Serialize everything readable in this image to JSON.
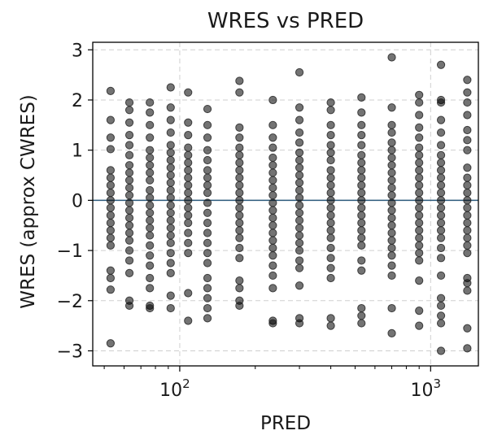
{
  "chart_data": {
    "type": "scatter",
    "title": "WRES vs PRED",
    "xlabel": "PRED",
    "ylabel": "WRES (approx CWRES)",
    "x_scale": "log",
    "xlim": [
      45,
      1550
    ],
    "ylim": [
      -3.3,
      3.15
    ],
    "x_ticks": [
      {
        "value": 100,
        "base": "10",
        "exp": "2"
      },
      {
        "value": 1000,
        "base": "10",
        "exp": "3"
      }
    ],
    "y_ticks": [
      3,
      2,
      1,
      0,
      -1,
      -2,
      -3
    ],
    "y_tick_labels": [
      "3",
      "2",
      "1",
      "0",
      "−1",
      "−2",
      "−3"
    ],
    "grid": true,
    "reference_line": {
      "y": 0,
      "color": "#2c5a7c"
    },
    "point_color": "#000000",
    "groups": [
      {
        "x": 53,
        "y": [
          2.18,
          1.6,
          1.25,
          1.02,
          0.6,
          0.45,
          0.3,
          0.15,
          0.0,
          -0.15,
          -0.3,
          -0.45,
          -0.6,
          -0.75,
          -0.9,
          -1.4,
          -1.55,
          -1.78,
          -2.85
        ]
      },
      {
        "x": 63,
        "y": [
          1.95,
          1.8,
          1.55,
          1.3,
          1.1,
          0.9,
          0.7,
          0.55,
          0.4,
          0.25,
          0.1,
          -0.05,
          -0.2,
          -0.35,
          -0.5,
          -0.65,
          -0.8,
          -1.0,
          -1.2,
          -1.45,
          -2.0,
          -2.1
        ]
      },
      {
        "x": 76,
        "y": [
          1.95,
          1.75,
          1.5,
          1.25,
          1.0,
          0.85,
          0.7,
          0.55,
          0.4,
          0.2,
          0.05,
          -0.1,
          -0.25,
          -0.4,
          -0.55,
          -0.7,
          -0.9,
          -1.1,
          -1.3,
          -1.55,
          -1.75,
          -2.1,
          -2.15
        ]
      },
      {
        "x": 92,
        "y": [
          2.25,
          1.85,
          1.6,
          1.35,
          1.1,
          0.95,
          0.8,
          0.65,
          0.5,
          0.35,
          0.2,
          0.05,
          -0.1,
          -0.25,
          -0.4,
          -0.55,
          -0.7,
          -0.85,
          -1.05,
          -1.25,
          -1.45,
          -1.9,
          -2.15
        ]
      },
      {
        "x": 108,
        "y": [
          2.15,
          1.55,
          1.3,
          1.05,
          0.9,
          0.75,
          0.6,
          0.45,
          0.3,
          0.15,
          0.0,
          -0.15,
          -0.3,
          -0.45,
          -0.65,
          -0.85,
          -1.05,
          -1.85,
          -2.4
        ]
      },
      {
        "x": 129,
        "y": [
          1.82,
          1.5,
          1.25,
          1.0,
          0.8,
          0.6,
          0.45,
          0.3,
          0.15,
          -0.05,
          -0.25,
          -0.45,
          -0.65,
          -0.85,
          -1.05,
          -1.25,
          -1.55,
          -1.75,
          -1.95,
          -2.15,
          -2.35
        ]
      },
      {
        "x": 173,
        "y": [
          2.38,
          2.15,
          1.45,
          1.25,
          1.05,
          0.9,
          0.75,
          0.6,
          0.45,
          0.3,
          0.15,
          0.0,
          -0.15,
          -0.3,
          -0.45,
          -0.6,
          -0.75,
          -0.95,
          -1.15,
          -1.6,
          -1.75,
          -2.0,
          -2.1
        ]
      },
      {
        "x": 235,
        "y": [
          2.0,
          1.5,
          1.25,
          1.05,
          0.85,
          0.7,
          0.55,
          0.4,
          0.25,
          0.1,
          -0.05,
          -0.2,
          -0.35,
          -0.5,
          -0.65,
          -0.8,
          -0.95,
          -1.1,
          -1.3,
          -1.5,
          -1.75,
          -2.4,
          -2.45
        ]
      },
      {
        "x": 300,
        "y": [
          2.55,
          1.85,
          1.6,
          1.35,
          1.15,
          0.95,
          0.8,
          0.65,
          0.5,
          0.35,
          0.2,
          0.05,
          -0.1,
          -0.25,
          -0.4,
          -0.55,
          -0.7,
          -0.85,
          -1.0,
          -1.2,
          -1.35,
          -1.7,
          -2.35,
          -2.45
        ]
      },
      {
        "x": 400,
        "y": [
          1.95,
          1.8,
          1.5,
          1.3,
          1.1,
          0.95,
          0.8,
          0.6,
          0.45,
          0.3,
          0.15,
          0.0,
          -0.15,
          -0.3,
          -0.45,
          -0.6,
          -0.75,
          -0.95,
          -1.15,
          -1.35,
          -1.55,
          -2.35,
          -2.5
        ]
      },
      {
        "x": 530,
        "y": [
          2.05,
          1.75,
          1.5,
          1.3,
          1.1,
          0.9,
          0.75,
          0.6,
          0.45,
          0.3,
          0.15,
          0.0,
          -0.15,
          -0.3,
          -0.45,
          -0.6,
          -0.75,
          -0.9,
          -1.2,
          -1.4,
          -2.15,
          -2.3,
          -2.45
        ]
      },
      {
        "x": 700,
        "y": [
          2.85,
          1.85,
          1.5,
          1.35,
          1.15,
          1.0,
          0.85,
          0.7,
          0.55,
          0.4,
          0.25,
          0.1,
          -0.05,
          -0.2,
          -0.35,
          -0.5,
          -0.65,
          -0.8,
          -0.95,
          -1.1,
          -1.3,
          -1.5,
          -2.15,
          -2.65
        ]
      },
      {
        "x": 900,
        "y": [
          2.1,
          1.95,
          1.7,
          1.45,
          1.25,
          1.05,
          0.9,
          0.75,
          0.6,
          0.45,
          0.3,
          0.15,
          0.0,
          -0.15,
          -0.3,
          -0.45,
          -0.6,
          -0.75,
          -0.9,
          -1.05,
          -1.2,
          -1.6,
          -2.2,
          -2.5
        ]
      },
      {
        "x": 1100,
        "y": [
          2.7,
          2.0,
          1.95,
          1.6,
          1.35,
          1.1,
          0.9,
          0.75,
          0.6,
          0.45,
          0.3,
          0.15,
          0.0,
          -0.15,
          -0.3,
          -0.45,
          -0.6,
          -0.75,
          -0.95,
          -1.15,
          -1.5,
          -1.95,
          -2.1,
          -2.3,
          -2.45,
          -3.0
        ]
      },
      {
        "x": 1400,
        "y": [
          2.4,
          2.15,
          1.95,
          1.7,
          1.4,
          1.2,
          1.0,
          0.65,
          0.45,
          0.3,
          0.15,
          0.0,
          -0.15,
          -0.3,
          -0.45,
          -0.6,
          -0.75,
          -0.9,
          -1.05,
          -1.55,
          -1.65,
          -1.8,
          -2.55,
          -2.95
        ]
      }
    ]
  }
}
